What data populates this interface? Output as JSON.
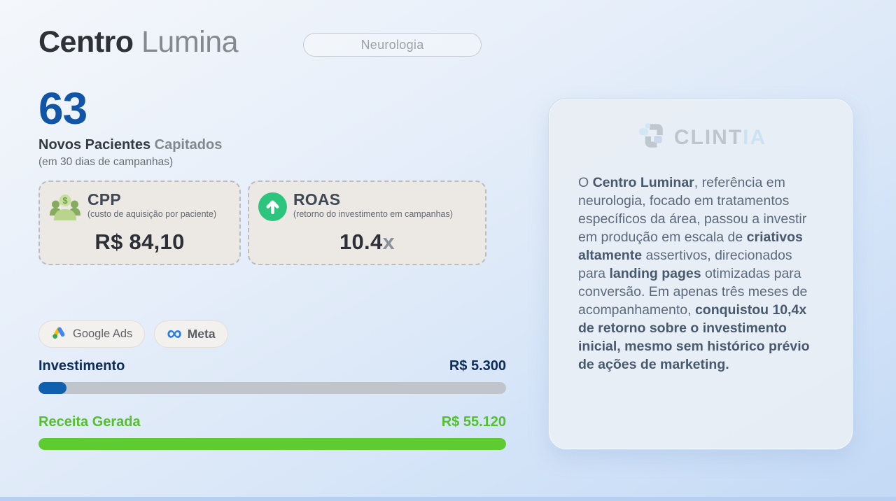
{
  "header": {
    "title_primary": "Centro",
    "title_secondary": "Lumina",
    "specialty": "Neurologia"
  },
  "metric": {
    "value": "63",
    "label_primary": "Novos Pacientes",
    "label_secondary": "Capitados",
    "sublabel": "(em 30 dias de campanhas)"
  },
  "kpi_cards": {
    "cpp": {
      "icon": "patients-dollar-icon",
      "title": "CPP",
      "subtitle": "(custo de aquisição por paciente)",
      "value": "R$ 84,10"
    },
    "roas": {
      "icon": "arrow-up-circle-icon",
      "title": "ROAS",
      "subtitle": "(retorno do investimento em campanhas)",
      "value": "10.4",
      "suffix": "x"
    }
  },
  "platforms": [
    {
      "icon": "google-ads-icon",
      "label": "Google Ads"
    },
    {
      "icon": "meta-icon",
      "label": "Meta"
    }
  ],
  "bars": {
    "investment": {
      "label": "Investimento",
      "value": "R$ 5.300",
      "percent": 6
    },
    "revenue": {
      "label": "Receita Gerada",
      "value": "R$ 55.120",
      "percent": 100
    }
  },
  "panel": {
    "brand_primary": "CLINT",
    "brand_secondary": "IA",
    "story_segments": [
      {
        "text": "O ",
        "bold": false
      },
      {
        "text": "Centro Luminar",
        "bold": true
      },
      {
        "text": ", referência em neurologia, focado em tratamentos específicos da área, passou a investir em produção em escala de ",
        "bold": false
      },
      {
        "text": "criativos altamente",
        "bold": true
      },
      {
        "text": " assertivos, direcionados para ",
        "bold": false
      },
      {
        "text": "landing pages",
        "bold": true
      },
      {
        "text": " otimizadas para conversão. Em apenas três meses de acompanhamento, ",
        "bold": false
      },
      {
        "text": "conquistou 10,4x de retorno sobre o investimento inicial, mesmo sem histórico prévio de ações de marketing.",
        "bold": true
      }
    ]
  },
  "colors": {
    "accent_blue": "#1155a7",
    "navy_text": "#0e2d5c",
    "investment_fill": "#1160ae",
    "bar_track": "#bfc5cb",
    "revenue_fill": "#5ecb31",
    "revenue_text": "#53c02c",
    "roas_icon_green": "#2dc57d",
    "card_bg": "#ece9e5",
    "panel_bg": "#e9eef4"
  }
}
